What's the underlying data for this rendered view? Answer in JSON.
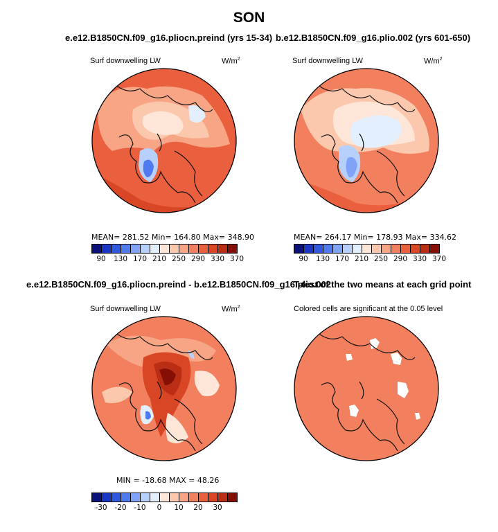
{
  "page_title": "SON",
  "colorbar_abs": {
    "colors": [
      "#08127a",
      "#1a36c4",
      "#3159e0",
      "#4f7af0",
      "#7fa3f7",
      "#b7d0fb",
      "#e3effd",
      "#fde6d8",
      "#fbc7ad",
      "#f7a585",
      "#f2805e",
      "#ea5f3d",
      "#d94626",
      "#b92e14",
      "#860f05"
    ],
    "tick_labels": [
      "90",
      "130",
      "170",
      "210",
      "250",
      "290",
      "330",
      "370"
    ]
  },
  "colorbar_diff": {
    "colors": [
      "#08127a",
      "#1a36c4",
      "#3159e0",
      "#4f7af0",
      "#7fa3f7",
      "#b7d0fb",
      "#e3effd",
      "#fde6d8",
      "#fbc7ad",
      "#f7a585",
      "#f2805e",
      "#ea5f3d",
      "#d94626",
      "#b92e14",
      "#860f05"
    ],
    "tick_labels": [
      "-30",
      "-20",
      "-10",
      "0",
      "10",
      "20",
      "30"
    ]
  },
  "chart_data": [
    {
      "type": "heatmap",
      "title": "e.e12.B1850CN.f09_g16.pliocn.preind (yrs 15-34)",
      "variable": "Surf downwelling LW",
      "units": "W/m",
      "units_exp": "2",
      "stats_text": "MEAN= 281.52  Min= 164.80  Max= 348.90",
      "mean": 281.52,
      "min": 164.8,
      "max": 348.9,
      "background_color": "#ea5f3d"
    },
    {
      "type": "heatmap",
      "title": "b.e12.B1850CN.f09_g16.plio.002 (yrs 601-650)",
      "variable": "Surf downwelling LW",
      "units": "W/m",
      "units_exp": "2",
      "stats_text": "MEAN= 264.17  Min= 178.93  Max= 334.62",
      "mean": 264.17,
      "min": 178.93,
      "max": 334.62,
      "background_color": "#f2805e"
    },
    {
      "type": "heatmap",
      "title": "e.e12.B1850CN.f09_g16.pliocn.preind - b.e12.B1850CN.f09_g16.plio.002",
      "variable": "Surf downwelling LW",
      "units": "W/m",
      "units_exp": "2",
      "stats_text": "MIN = -18.68  MAX =  48.26",
      "min": -18.68,
      "max": 48.26,
      "background_color": "#f2805e"
    },
    {
      "type": "heatmap",
      "title": "T-test of the two means at each grid point",
      "subtitle": "Colored cells are significant at the 0.05 level",
      "background_color": "#f2805e"
    }
  ]
}
